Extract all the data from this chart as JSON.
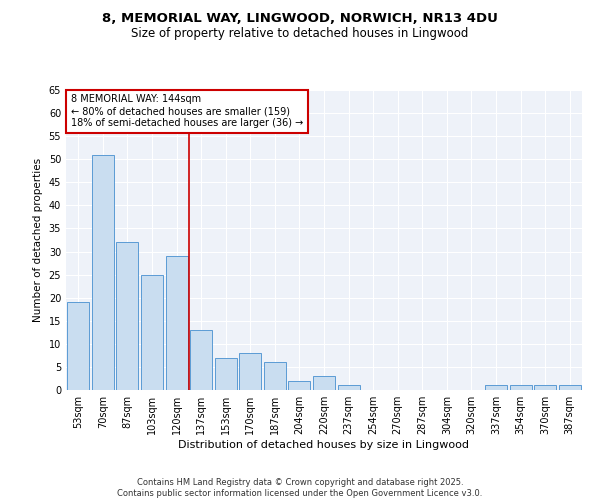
{
  "title": "8, MEMORIAL WAY, LINGWOOD, NORWICH, NR13 4DU",
  "subtitle": "Size of property relative to detached houses in Lingwood",
  "xlabel": "Distribution of detached houses by size in Lingwood",
  "ylabel": "Number of detached properties",
  "categories": [
    "53sqm",
    "70sqm",
    "87sqm",
    "103sqm",
    "120sqm",
    "137sqm",
    "153sqm",
    "170sqm",
    "187sqm",
    "204sqm",
    "220sqm",
    "237sqm",
    "254sqm",
    "270sqm",
    "287sqm",
    "304sqm",
    "320sqm",
    "337sqm",
    "354sqm",
    "370sqm",
    "387sqm"
  ],
  "values": [
    19,
    51,
    32,
    25,
    29,
    13,
    7,
    8,
    6,
    2,
    3,
    1,
    0,
    0,
    0,
    0,
    0,
    1,
    1,
    1,
    1
  ],
  "bar_color": "#c9ddf0",
  "bar_edge_color": "#5b9bd5",
  "annotation_text": "8 MEMORIAL WAY: 144sqm\n← 80% of detached houses are smaller (159)\n18% of semi-detached houses are larger (36) →",
  "annotation_box_color": "#ffffff",
  "annotation_box_edge_color": "#cc0000",
  "vline_color": "#cc0000",
  "vline_x": 4.5,
  "ylim": [
    0,
    65
  ],
  "yticks": [
    0,
    5,
    10,
    15,
    20,
    25,
    30,
    35,
    40,
    45,
    50,
    55,
    60,
    65
  ],
  "background_color": "#eef2f9",
  "grid_color": "#ffffff",
  "footer_text": "Contains HM Land Registry data © Crown copyright and database right 2025.\nContains public sector information licensed under the Open Government Licence v3.0.",
  "title_fontsize": 9.5,
  "subtitle_fontsize": 8.5,
  "xlabel_fontsize": 8,
  "ylabel_fontsize": 7.5,
  "tick_fontsize": 7,
  "annotation_fontsize": 7,
  "footer_fontsize": 6
}
